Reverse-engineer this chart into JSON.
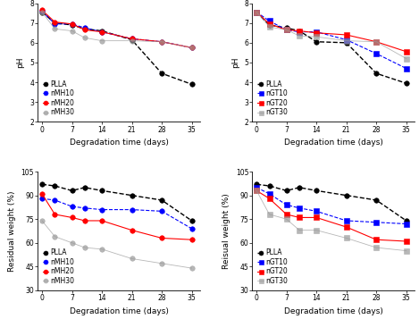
{
  "x_days": [
    0,
    3,
    7,
    10,
    14,
    21,
    28,
    35
  ],
  "top_left": {
    "ylabel": "pH",
    "xlabel": "Degradation time (days)",
    "ylim": [
      2,
      8
    ],
    "yticks": [
      2,
      3,
      4,
      5,
      6,
      7,
      8
    ],
    "xticks": [
      0,
      7,
      14,
      21,
      28,
      35
    ],
    "series": {
      "PLLA": {
        "y": [
          7.55,
          7.0,
          6.9,
          6.7,
          6.6,
          6.15,
          4.45,
          3.9
        ],
        "color": "#000000",
        "marker": "o",
        "linestyle": "--",
        "lw": 1.0,
        "alpha": 1.0
      },
      "nMH10": {
        "y": [
          7.6,
          6.95,
          6.95,
          6.75,
          6.55,
          6.2,
          6.05,
          5.75
        ],
        "color": "#0000ff",
        "marker": "o",
        "linestyle": "--",
        "lw": 0.8,
        "alpha": 1.0
      },
      "nMH20": {
        "y": [
          7.65,
          7.05,
          6.95,
          6.65,
          6.55,
          6.2,
          6.05,
          5.75
        ],
        "color": "#ff0000",
        "marker": "o",
        "linestyle": "-",
        "lw": 0.8,
        "alpha": 1.0
      },
      "nMH30": {
        "y": [
          7.55,
          6.7,
          6.6,
          6.25,
          6.1,
          6.1,
          6.05,
          5.75
        ],
        "color": "#999999",
        "marker": "o",
        "linestyle": "-",
        "lw": 0.6,
        "alpha": 0.7
      }
    }
  },
  "top_right": {
    "ylabel": "pH",
    "xlabel": "Degradation time (days)",
    "ylim": [
      2,
      8
    ],
    "yticks": [
      2,
      3,
      4,
      5,
      6,
      7,
      8
    ],
    "xticks": [
      0,
      7,
      14,
      21,
      28,
      35
    ],
    "series": {
      "PLLA": {
        "y": [
          7.55,
          6.9,
          6.75,
          6.6,
          6.05,
          6.0,
          4.45,
          3.95
        ],
        "color": "#000000",
        "marker": "o",
        "linestyle": "--",
        "lw": 1.0,
        "alpha": 1.0
      },
      "nGT10": {
        "y": [
          7.55,
          7.1,
          6.65,
          6.55,
          6.55,
          6.15,
          5.45,
          4.7
        ],
        "color": "#0000ff",
        "marker": "s",
        "linestyle": "--",
        "lw": 0.8,
        "alpha": 1.0
      },
      "nGT20": {
        "y": [
          7.55,
          6.95,
          6.65,
          6.6,
          6.5,
          6.4,
          6.05,
          5.55
        ],
        "color": "#ff0000",
        "marker": "s",
        "linestyle": "-",
        "lw": 0.8,
        "alpha": 1.0
      },
      "nGT30": {
        "y": [
          7.55,
          6.8,
          6.65,
          6.35,
          6.3,
          6.1,
          6.05,
          5.2
        ],
        "color": "#999999",
        "marker": "s",
        "linestyle": "-",
        "lw": 0.6,
        "alpha": 0.7
      }
    }
  },
  "bottom_left": {
    "ylabel": "Residual weight (%)",
    "xlabel": "Degradation time (days)",
    "ylim": [
      30,
      105
    ],
    "yticks": [
      30,
      45,
      60,
      75,
      90,
      105
    ],
    "xticks": [
      0,
      7,
      14,
      21,
      28,
      35
    ],
    "series": {
      "PLLA": {
        "y": [
          97,
          96,
          93,
          95,
          93,
          90,
          87,
          74
        ],
        "color": "#000000",
        "marker": "o",
        "linestyle": "--",
        "lw": 1.0,
        "alpha": 1.0
      },
      "nMH10": {
        "y": [
          88,
          87,
          83,
          82,
          81,
          81,
          80,
          69
        ],
        "color": "#0000ff",
        "marker": "o",
        "linestyle": "--",
        "lw": 0.8,
        "alpha": 1.0
      },
      "nMH20": {
        "y": [
          91,
          78,
          76,
          74,
          74,
          68,
          63,
          62
        ],
        "color": "#ff0000",
        "marker": "o",
        "linestyle": "-",
        "lw": 0.8,
        "alpha": 1.0
      },
      "nMH30": {
        "y": [
          74,
          64,
          60,
          57,
          56,
          50,
          47,
          44
        ],
        "color": "#999999",
        "marker": "o",
        "linestyle": "-",
        "lw": 0.6,
        "alpha": 0.7
      }
    }
  },
  "bottom_right": {
    "ylabel": "Reisual weight (%)",
    "xlabel": "Degradation time (days)",
    "ylim": [
      30,
      105
    ],
    "yticks": [
      30,
      45,
      60,
      75,
      90,
      105
    ],
    "xticks": [
      0,
      7,
      14,
      21,
      28,
      35
    ],
    "series": {
      "PLLA": {
        "y": [
          97,
          96,
          93,
          95,
          93,
          90,
          87,
          74
        ],
        "color": "#000000",
        "marker": "o",
        "linestyle": "--",
        "lw": 1.0,
        "alpha": 1.0
      },
      "nGT10": {
        "y": [
          95,
          91,
          84,
          82,
          80,
          74,
          73,
          72
        ],
        "color": "#0000ff",
        "marker": "s",
        "linestyle": "--",
        "lw": 0.8,
        "alpha": 1.0
      },
      "nGT20": {
        "y": [
          93,
          88,
          78,
          76,
          76,
          70,
          62,
          61
        ],
        "color": "#ff0000",
        "marker": "s",
        "linestyle": "-",
        "lw": 0.8,
        "alpha": 1.0
      },
      "nGT30": {
        "y": [
          93,
          78,
          75,
          68,
          68,
          63,
          57,
          55
        ],
        "color": "#999999",
        "marker": "s",
        "linestyle": "-",
        "lw": 0.6,
        "alpha": 0.7
      }
    }
  },
  "markersize": 4,
  "fontsize_label": 6.5,
  "fontsize_tick": 5.5,
  "fontsize_legend": 5.5
}
